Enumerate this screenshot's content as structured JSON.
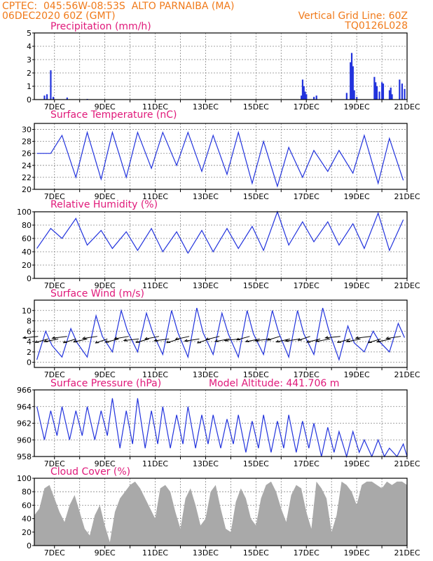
{
  "header": {
    "line1_left": "CPTEC:  045:56W-08:53S  ALTO PARNAIBA (MA)",
    "line2_left": "06DEC2020 60Z (GMT)",
    "line1_right": "Vertical Grid Line: 60Z",
    "line2_right": "TQ0126L028"
  },
  "colors": {
    "header": "#f07a1a",
    "title": "#e0197a",
    "series": "#2233dd",
    "bars": "#2233dd",
    "cloud": "#a9a9a9",
    "arrows": "#000000"
  },
  "x_tick_labels": [
    "7DEC",
    "9DEC",
    "11DEC",
    "13DEC",
    "15DEC",
    "17DEC",
    "19DEC",
    "21DEC"
  ],
  "chart_data": [
    {
      "id": "precip",
      "type": "bar",
      "title": "Precipitation (mm/h)",
      "ylim": [
        0,
        5
      ],
      "yticks": [
        0,
        1,
        2,
        3,
        4,
        5
      ],
      "x_day_range": [
        6.2,
        21.0
      ],
      "points": [
        [
          6.6,
          0.3
        ],
        [
          6.7,
          0.4
        ],
        [
          6.85,
          2.2
        ],
        [
          6.95,
          0.2
        ],
        [
          7.5,
          0.15
        ],
        [
          8.3,
          0.05
        ],
        [
          16.8,
          0.3
        ],
        [
          16.85,
          1.5
        ],
        [
          16.9,
          1.0
        ],
        [
          16.95,
          0.6
        ],
        [
          17.0,
          0.4
        ],
        [
          17.3,
          0.2
        ],
        [
          17.4,
          0.3
        ],
        [
          18.6,
          0.5
        ],
        [
          18.75,
          2.8
        ],
        [
          18.8,
          3.5
        ],
        [
          18.85,
          2.5
        ],
        [
          18.9,
          0.7
        ],
        [
          19.0,
          0.2
        ],
        [
          19.7,
          1.7
        ],
        [
          19.75,
          1.3
        ],
        [
          19.8,
          1.0
        ],
        [
          19.9,
          0.6
        ],
        [
          20.0,
          1.3
        ],
        [
          20.05,
          1.2
        ],
        [
          20.3,
          0.7
        ],
        [
          20.35,
          0.9
        ],
        [
          20.4,
          0.4
        ],
        [
          20.7,
          1.5
        ],
        [
          20.8,
          1.2
        ],
        [
          20.9,
          0.8
        ]
      ]
    },
    {
      "id": "temp",
      "type": "line",
      "title": "Surface Temperature (nC)",
      "ylim": [
        20,
        31
      ],
      "yticks": [
        20,
        22,
        24,
        26,
        28,
        30
      ],
      "x_day_range": [
        6.2,
        21.0
      ],
      "daily": {
        "x": [
          6.3,
          7.3,
          8.3,
          9.3,
          10.3,
          11.3,
          12.3,
          13.3,
          14.3,
          15.3,
          16.3,
          17.3,
          18.3,
          19.3,
          20.3
        ],
        "max": [
          26,
          29,
          29.5,
          29.5,
          29.5,
          29.5,
          29.5,
          29,
          29.5,
          28,
          27,
          26.5,
          26.5,
          29,
          28.5
        ],
        "min": [
          26,
          22,
          21.7,
          22,
          23.5,
          24,
          23,
          22.5,
          21,
          20.5,
          22,
          23,
          22.7,
          21,
          21.5
        ]
      }
    },
    {
      "id": "rh",
      "type": "line",
      "title": "Relative Humidity (%)",
      "ylim": [
        0,
        100
      ],
      "yticks": [
        0,
        20,
        40,
        60,
        80,
        100
      ],
      "x_day_range": [
        6.2,
        21.0
      ],
      "daily": {
        "x": [
          6.3,
          7.3,
          8.3,
          9.3,
          10.3,
          11.3,
          12.3,
          13.3,
          14.3,
          15.3,
          16.3,
          17.3,
          18.3,
          19.3,
          20.3
        ],
        "min": [
          45,
          60,
          50,
          45,
          42,
          40,
          38,
          40,
          45,
          42,
          50,
          55,
          50,
          45,
          42
        ],
        "max": [
          75,
          90,
          72,
          70,
          75,
          70,
          72,
          75,
          78,
          100,
          85,
          85,
          82,
          98,
          88
        ]
      }
    },
    {
      "id": "wind",
      "type": "line",
      "title": "Surface Wind (m/s)",
      "ylim": [
        -1,
        12
      ],
      "yticks": [
        0,
        2,
        4,
        6,
        8,
        10
      ],
      "x_day_range": [
        6.2,
        21.0
      ],
      "daily": {
        "x": [
          6.3,
          7.3,
          8.3,
          9.3,
          10.3,
          11.3,
          12.3,
          13.3,
          14.3,
          15.3,
          16.3,
          17.3,
          18.3,
          19.3,
          20.3
        ],
        "max": [
          6,
          6.5,
          9,
          10,
          9.5,
          10,
          10.5,
          9.5,
          10,
          10,
          10,
          10.5,
          7,
          6,
          7.5
        ],
        "min": [
          0.5,
          1,
          1,
          2,
          2,
          1.5,
          1,
          1.5,
          1,
          1.5,
          1,
          1.5,
          0.5,
          2,
          2
        ]
      },
      "arrow_days": [
        6.35,
        6.75,
        7.15,
        7.5,
        7.85,
        8.3,
        8.7,
        9.1,
        9.55,
        9.95,
        10.35,
        10.75,
        11.15,
        11.55,
        11.95,
        12.35,
        12.75,
        13.15,
        13.55,
        13.95,
        14.35,
        14.75,
        15.15,
        15.55,
        15.95,
        16.35,
        16.75,
        17.15,
        17.55,
        17.95,
        18.35,
        18.75,
        19.15,
        19.55,
        19.95,
        20.35,
        20.75
      ]
    },
    {
      "id": "pressure",
      "type": "line",
      "title": "Surface Pressure (hPa)",
      "annotation": "Model Altitude: 441.706 m",
      "ylim": [
        958,
        966
      ],
      "yticks": [
        958,
        960,
        962,
        964,
        966
      ],
      "x_day_range": [
        6.2,
        21.0
      ],
      "daily": {
        "x": [
          6.3,
          7.3,
          8.3,
          9.3,
          10.3,
          11.3,
          12.3,
          13.3,
          14.3,
          15.3,
          16.3,
          17.3,
          18.3,
          19.3,
          20.3
        ],
        "max": [
          964,
          964,
          964,
          965,
          965,
          964,
          964,
          963,
          963,
          963,
          963,
          962,
          961,
          960,
          959
        ],
        "min": [
          960,
          960,
          960,
          959,
          959,
          959,
          959,
          959,
          958.5,
          958.5,
          958.5,
          958,
          958,
          957,
          957
        ]
      }
    },
    {
      "id": "cloud",
      "type": "area",
      "title": "Cloud Cover (%)",
      "ylim": [
        0,
        100
      ],
      "yticks": [
        0,
        20,
        40,
        60,
        80,
        100
      ],
      "x_day_range": [
        6.2,
        21.0
      ],
      "x": [
        6.2,
        6.4,
        6.6,
        6.8,
        7.0,
        7.2,
        7.4,
        7.6,
        7.8,
        8.0,
        8.2,
        8.4,
        8.6,
        8.8,
        9.0,
        9.2,
        9.4,
        9.6,
        9.8,
        10.0,
        10.2,
        10.4,
        10.6,
        10.8,
        11.0,
        11.2,
        11.4,
        11.6,
        11.8,
        12.0,
        12.2,
        12.4,
        12.6,
        12.8,
        13.0,
        13.2,
        13.4,
        13.6,
        13.8,
        14.0,
        14.2,
        14.4,
        14.6,
        14.8,
        15.0,
        15.2,
        15.4,
        15.6,
        15.8,
        16.0,
        16.2,
        16.4,
        16.6,
        16.8,
        17.0,
        17.2,
        17.4,
        17.6,
        17.8,
        18.0,
        18.2,
        18.4,
        18.6,
        18.8,
        19.0,
        19.2,
        19.4,
        19.6,
        19.8,
        20.0,
        20.2,
        20.4,
        20.6,
        20.8,
        21.0
      ],
      "values": [
        45,
        55,
        85,
        90,
        70,
        50,
        35,
        60,
        75,
        50,
        25,
        15,
        45,
        60,
        30,
        5,
        50,
        70,
        80,
        90,
        95,
        85,
        70,
        55,
        40,
        85,
        90,
        80,
        50,
        25,
        70,
        85,
        60,
        30,
        40,
        80,
        90,
        55,
        25,
        20,
        65,
        85,
        70,
        40,
        30,
        70,
        90,
        95,
        80,
        55,
        35,
        75,
        90,
        85,
        50,
        25,
        95,
        85,
        70,
        20,
        45,
        95,
        90,
        80,
        60,
        90,
        95,
        95,
        90,
        85,
        95,
        90,
        95,
        95,
        90
      ]
    }
  ]
}
